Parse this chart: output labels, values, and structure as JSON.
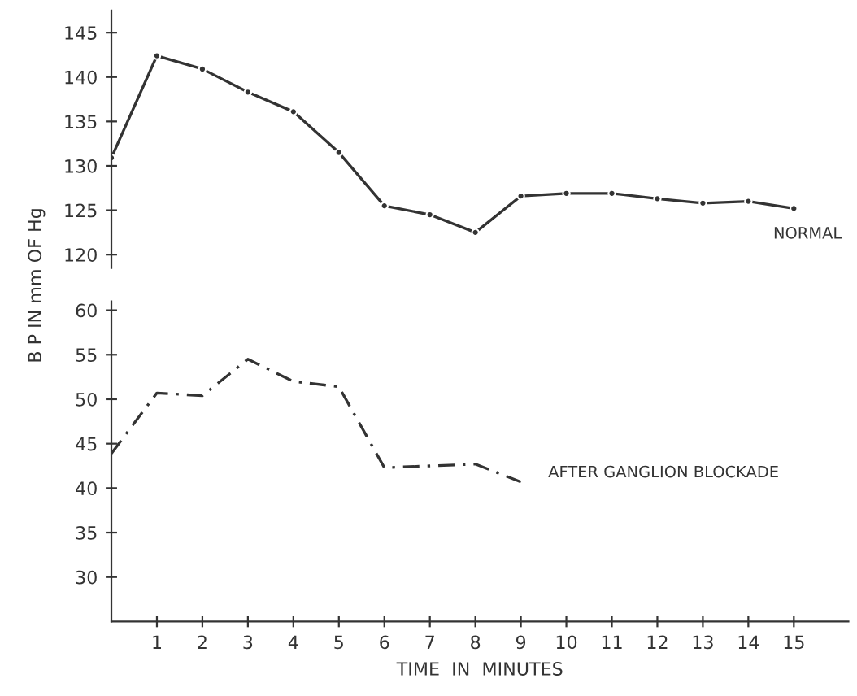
{
  "chart_data": [
    {
      "type": "line",
      "x": [
        0,
        1,
        2,
        3,
        4,
        5,
        6,
        7,
        8,
        9,
        10,
        11,
        12,
        13,
        14,
        15
      ],
      "ylim": [
        118.5,
        147.5
      ],
      "yticks": [
        120,
        125,
        130,
        135,
        140,
        145
      ],
      "tick_labels": "y",
      "grid": false,
      "marker": "circle",
      "line_style": "solid",
      "series": [
        {
          "name": "NORMAL",
          "color": "#333333",
          "values": [
            130.9,
            142.4,
            140.9,
            138.3,
            136.1,
            131.5,
            125.5,
            124.5,
            122.5,
            126.6,
            126.9,
            126.9,
            126.3,
            125.8,
            126.0,
            125.2
          ]
        }
      ]
    },
    {
      "type": "line",
      "x": [
        0,
        1,
        2,
        3,
        4,
        5,
        6,
        7,
        8,
        9
      ],
      "xlim": [
        0,
        16.2
      ],
      "xticks": [
        1,
        2,
        3,
        4,
        5,
        6,
        7,
        8,
        9,
        10,
        11,
        12,
        13,
        14,
        15
      ],
      "ylim": [
        25,
        61
      ],
      "yticks": [
        30,
        35,
        40,
        45,
        50,
        55,
        60
      ],
      "xlabel": "TIME  IN  MINUTES",
      "ylabel": "B P IN mm OF Hg",
      "grid": false,
      "marker": "none",
      "line_style": "dashed",
      "series": [
        {
          "name": "AFTER GANGLION BLOCKADE",
          "color": "#333333",
          "values": [
            43.9,
            50.7,
            50.4,
            54.5,
            52.0,
            51.4,
            42.3,
            42.5,
            42.7,
            40.7
          ]
        }
      ]
    }
  ]
}
